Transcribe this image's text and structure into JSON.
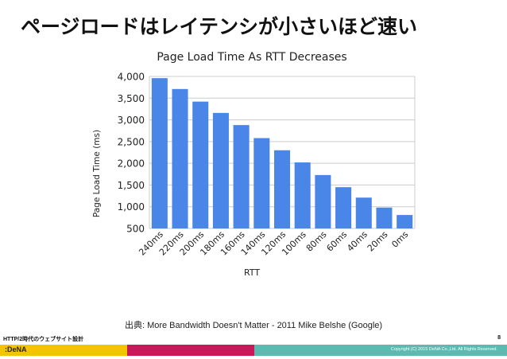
{
  "slide": {
    "title": "ページロードはレイテンシが小さいほど速い",
    "source": "出典: More Bandwidth Doesn't Matter - 2011 Mike Belshe (Google)",
    "footer_title": "HTTP/2時代のウェブサイト設計",
    "page_number": "8",
    "logo_text": ":DeNA",
    "copyright": "Copyright (C) 2015 DeNA Co.,Ltd. All Rights Reserved."
  },
  "colors": {
    "bar": "#4a86e8",
    "band_yellow": "#f2c500",
    "band_pink": "#c8185a",
    "band_teal": "#5cbab0"
  },
  "chart_data": {
    "type": "bar",
    "title": "Page Load Time As RTT Decreases",
    "xlabel": "RTT",
    "ylabel": "Page Load Time (ms)",
    "categories": [
      "240ms",
      "220ms",
      "200ms",
      "180ms",
      "160ms",
      "140ms",
      "120ms",
      "100ms",
      "80ms",
      "60ms",
      "40ms",
      "20ms",
      "0ms"
    ],
    "values": [
      3960,
      3710,
      3420,
      3160,
      2880,
      2580,
      2300,
      2020,
      1730,
      1450,
      1210,
      980,
      810
    ],
    "ylim": [
      500,
      4000
    ],
    "yticks": [
      500,
      1000,
      1500,
      2000,
      2500,
      3000,
      3500,
      4000
    ],
    "ytick_labels": [
      "500",
      "1,000",
      "1,500",
      "2,000",
      "2,500",
      "3,000",
      "3,500",
      "4,000"
    ],
    "grid": true,
    "legend": "none"
  }
}
